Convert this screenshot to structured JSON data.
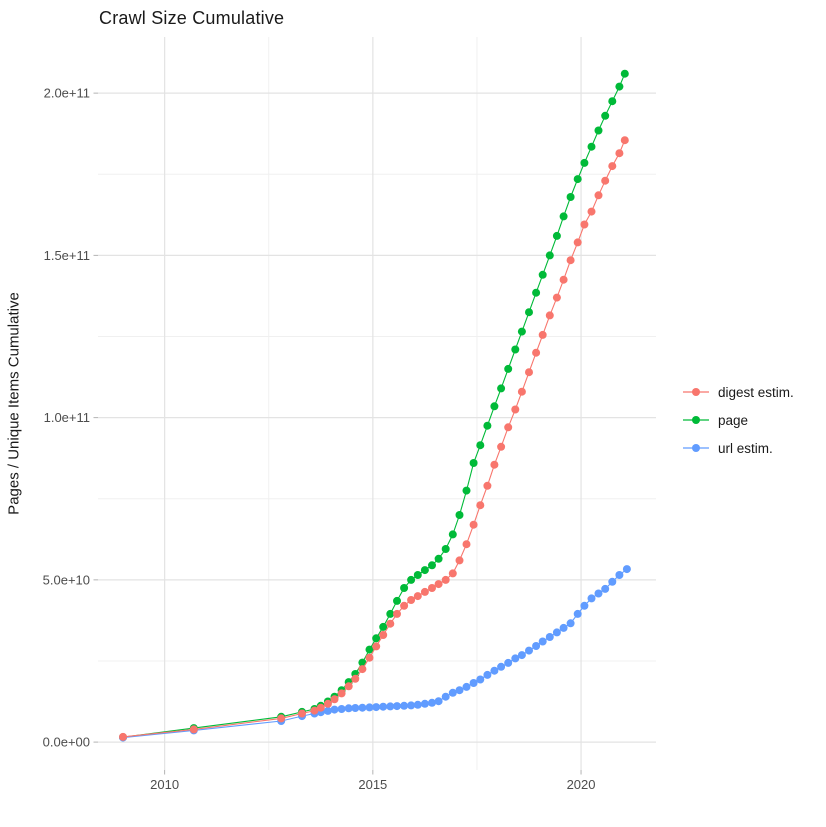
{
  "chart": {
    "title": "Crawl Size Cumulative",
    "ylabel": "Pages / Unique Items Cumulative",
    "xlabel": ""
  },
  "legend": {
    "position": "right",
    "items": [
      {
        "label": "digest estim.",
        "color": "#F8766D",
        "series": "digest"
      },
      {
        "label": "page",
        "color": "#00BA38",
        "series": "page"
      },
      {
        "label": "url estim.",
        "color": "#619CFF",
        "series": "url"
      }
    ]
  },
  "colors": {
    "grid_major": "#e3e3e3",
    "grid_minor": "#f0f0f0",
    "tick_mark": "#b3b3b3",
    "tick_label": "#4d4d4d",
    "background": "#ffffff"
  },
  "chart_data": {
    "type": "line",
    "title": "Crawl Size Cumulative",
    "xlabel": "",
    "ylabel": "Pages / Unique Items Cumulative",
    "y_unit": "billions (1e9) of pages / unique items",
    "xlim": [
      2008.4,
      2021.8
    ],
    "ylim_billions": [
      -8.6,
      217.3
    ],
    "grid": true,
    "legend_position": "right",
    "marker": "point-with-line",
    "x_ticks": [
      {
        "v": 2010,
        "label": "2010"
      },
      {
        "v": 2015,
        "label": "2015"
      },
      {
        "v": 2020,
        "label": "2020"
      }
    ],
    "x_minor": [
      2012.5,
      2017.5
    ],
    "y_ticks": [
      {
        "v": 0,
        "label": "0.0e+00"
      },
      {
        "v": 50,
        "label": "5.0e+10"
      },
      {
        "v": 100,
        "label": "1.0e+11"
      },
      {
        "v": 150,
        "label": "1.5e+11"
      },
      {
        "v": 200,
        "label": "2.0e+11"
      }
    ],
    "y_minor": [
      25,
      75,
      125,
      175
    ],
    "series": [
      {
        "name": "page",
        "color": "#00BA38",
        "points": [
          [
            2009.0,
            1.5
          ],
          [
            2010.7,
            4.3
          ],
          [
            2012.8,
            7.8
          ],
          [
            2013.3,
            9.3
          ],
          [
            2013.6,
            10.2
          ],
          [
            2013.75,
            11.2
          ],
          [
            2013.92,
            12.5
          ],
          [
            2014.08,
            14.0
          ],
          [
            2014.25,
            16.0
          ],
          [
            2014.42,
            18.5
          ],
          [
            2014.58,
            21.0
          ],
          [
            2014.75,
            24.5
          ],
          [
            2014.92,
            28.5
          ],
          [
            2015.08,
            32.0
          ],
          [
            2015.25,
            35.5
          ],
          [
            2015.42,
            39.5
          ],
          [
            2015.58,
            43.5
          ],
          [
            2015.75,
            47.5
          ],
          [
            2015.92,
            50.0
          ],
          [
            2016.08,
            51.5
          ],
          [
            2016.25,
            53.0
          ],
          [
            2016.42,
            54.5
          ],
          [
            2016.58,
            56.5
          ],
          [
            2016.75,
            59.5
          ],
          [
            2016.92,
            64.0
          ],
          [
            2017.08,
            70.0
          ],
          [
            2017.25,
            77.5
          ],
          [
            2017.42,
            86.0
          ],
          [
            2017.58,
            91.5
          ],
          [
            2017.75,
            97.5
          ],
          [
            2017.92,
            103.5
          ],
          [
            2018.08,
            109.0
          ],
          [
            2018.25,
            115.0
          ],
          [
            2018.42,
            121.0
          ],
          [
            2018.58,
            126.5
          ],
          [
            2018.75,
            132.5
          ],
          [
            2018.92,
            138.5
          ],
          [
            2019.08,
            144.0
          ],
          [
            2019.25,
            150.0
          ],
          [
            2019.42,
            156.0
          ],
          [
            2019.58,
            162.0
          ],
          [
            2019.75,
            168.0
          ],
          [
            2019.92,
            173.5
          ],
          [
            2020.08,
            178.5
          ],
          [
            2020.25,
            183.5
          ],
          [
            2020.42,
            188.5
          ],
          [
            2020.58,
            193.0
          ],
          [
            2020.75,
            197.5
          ],
          [
            2020.92,
            202.0
          ],
          [
            2021.05,
            206.0
          ]
        ]
      },
      {
        "name": "url",
        "color": "#619CFF",
        "points": [
          [
            2009.0,
            1.4
          ],
          [
            2010.7,
            3.6
          ],
          [
            2012.8,
            6.5
          ],
          [
            2013.3,
            8.0
          ],
          [
            2013.6,
            8.8
          ],
          [
            2013.75,
            9.2
          ],
          [
            2013.92,
            9.6
          ],
          [
            2014.08,
            10.0
          ],
          [
            2014.25,
            10.2
          ],
          [
            2014.42,
            10.4
          ],
          [
            2014.58,
            10.5
          ],
          [
            2014.75,
            10.6
          ],
          [
            2014.92,
            10.7
          ],
          [
            2015.08,
            10.8
          ],
          [
            2015.25,
            10.9
          ],
          [
            2015.42,
            11.0
          ],
          [
            2015.58,
            11.1
          ],
          [
            2015.75,
            11.2
          ],
          [
            2015.92,
            11.3
          ],
          [
            2016.08,
            11.5
          ],
          [
            2016.25,
            11.8
          ],
          [
            2016.42,
            12.1
          ],
          [
            2016.58,
            12.6
          ],
          [
            2016.75,
            14.0
          ],
          [
            2016.92,
            15.2
          ],
          [
            2017.08,
            16.0
          ],
          [
            2017.25,
            17.0
          ],
          [
            2017.42,
            18.2
          ],
          [
            2017.58,
            19.3
          ],
          [
            2017.75,
            20.7
          ],
          [
            2017.92,
            22.0
          ],
          [
            2018.08,
            23.2
          ],
          [
            2018.25,
            24.4
          ],
          [
            2018.42,
            25.8
          ],
          [
            2018.58,
            26.8
          ],
          [
            2018.75,
            28.2
          ],
          [
            2018.92,
            29.6
          ],
          [
            2019.08,
            31.0
          ],
          [
            2019.25,
            32.4
          ],
          [
            2019.42,
            33.8
          ],
          [
            2019.58,
            35.2
          ],
          [
            2019.75,
            36.6
          ],
          [
            2019.92,
            39.5
          ],
          [
            2020.08,
            42.0
          ],
          [
            2020.25,
            44.3
          ],
          [
            2020.42,
            45.8
          ],
          [
            2020.58,
            47.2
          ],
          [
            2020.75,
            49.4
          ],
          [
            2020.92,
            51.5
          ],
          [
            2021.1,
            53.3
          ]
        ]
      },
      {
        "name": "digest",
        "color": "#F8766D",
        "points": [
          [
            2009.0,
            1.6
          ],
          [
            2010.7,
            3.9
          ],
          [
            2012.8,
            7.3
          ],
          [
            2013.3,
            8.8
          ],
          [
            2013.6,
            9.7
          ],
          [
            2013.75,
            10.6
          ],
          [
            2013.92,
            11.8
          ],
          [
            2014.08,
            13.2
          ],
          [
            2014.25,
            15.0
          ],
          [
            2014.42,
            17.2
          ],
          [
            2014.58,
            19.5
          ],
          [
            2014.75,
            22.5
          ],
          [
            2014.92,
            26.0
          ],
          [
            2015.08,
            29.5
          ],
          [
            2015.25,
            33.0
          ],
          [
            2015.42,
            36.5
          ],
          [
            2015.58,
            39.5
          ],
          [
            2015.75,
            42.0
          ],
          [
            2015.92,
            43.8
          ],
          [
            2016.08,
            45.0
          ],
          [
            2016.25,
            46.3
          ],
          [
            2016.42,
            47.5
          ],
          [
            2016.58,
            48.7
          ],
          [
            2016.75,
            50.0
          ],
          [
            2016.92,
            52.0
          ],
          [
            2017.08,
            56.0
          ],
          [
            2017.25,
            61.0
          ],
          [
            2017.42,
            67.0
          ],
          [
            2017.58,
            73.0
          ],
          [
            2017.75,
            79.0
          ],
          [
            2017.92,
            85.5
          ],
          [
            2018.08,
            91.0
          ],
          [
            2018.25,
            97.0
          ],
          [
            2018.42,
            102.5
          ],
          [
            2018.58,
            108.0
          ],
          [
            2018.75,
            114.0
          ],
          [
            2018.92,
            120.0
          ],
          [
            2019.08,
            125.5
          ],
          [
            2019.25,
            131.5
          ],
          [
            2019.42,
            137.0
          ],
          [
            2019.58,
            142.5
          ],
          [
            2019.75,
            148.5
          ],
          [
            2019.92,
            154.0
          ],
          [
            2020.08,
            159.5
          ],
          [
            2020.25,
            163.5
          ],
          [
            2020.42,
            168.5
          ],
          [
            2020.58,
            173.0
          ],
          [
            2020.75,
            177.5
          ],
          [
            2020.92,
            181.5
          ],
          [
            2021.05,
            185.5
          ]
        ]
      }
    ]
  }
}
